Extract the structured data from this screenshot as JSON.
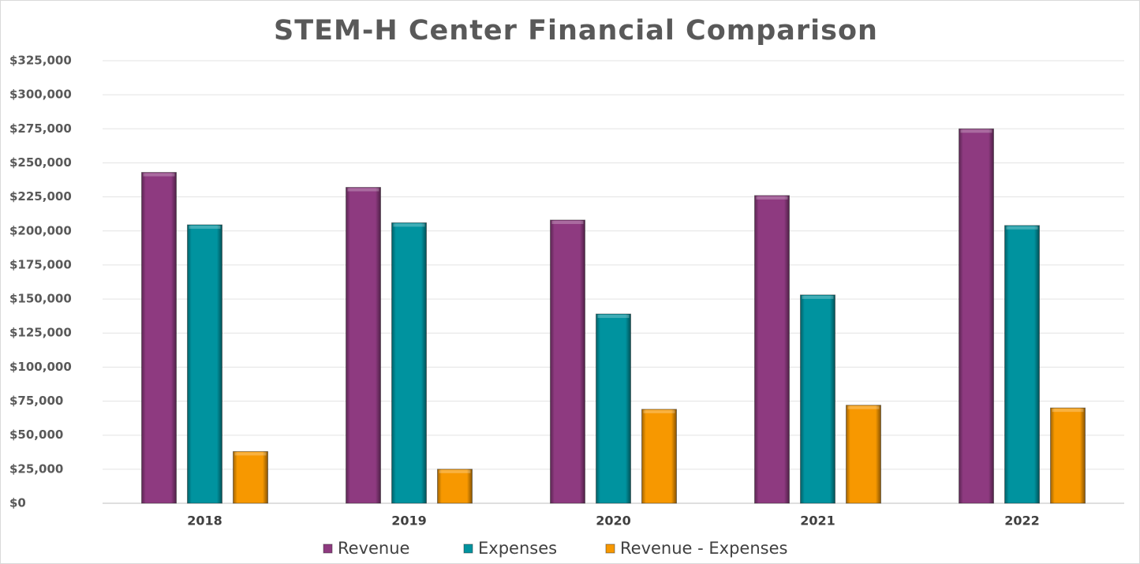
{
  "chart_data": {
    "type": "bar",
    "title": "STEM-H Center Financial Comparison",
    "categories": [
      "2018",
      "2019",
      "2020",
      "2021",
      "2022"
    ],
    "series": [
      {
        "name": "Revenue",
        "color": "#8e3a80",
        "values": [
          243000,
          232000,
          208000,
          226000,
          275000
        ]
      },
      {
        "name": "Expenses",
        "color": "#00939f",
        "values": [
          204500,
          206000,
          139000,
          153000,
          204000
        ]
      },
      {
        "name": "Revenue - Expenses",
        "color": "#f79800",
        "values": [
          38000,
          25000,
          69000,
          72000,
          70000
        ]
      }
    ],
    "ylim": [
      0,
      325000
    ],
    "yticks": [
      {
        "value": 0,
        "label": "$0"
      },
      {
        "value": 25000,
        "label": "$25,000"
      },
      {
        "value": 50000,
        "label": "$50,000"
      },
      {
        "value": 75000,
        "label": "$75,000"
      },
      {
        "value": 100000,
        "label": "$100,000"
      },
      {
        "value": 125000,
        "label": "$125,000"
      },
      {
        "value": 150000,
        "label": "$150,000"
      },
      {
        "value": 175000,
        "label": "$175,000"
      },
      {
        "value": 200000,
        "label": "$200,000"
      },
      {
        "value": 225000,
        "label": "$225,000"
      },
      {
        "value": 250000,
        "label": "$250,000"
      },
      {
        "value": 275000,
        "label": "$275,000"
      },
      {
        "value": 300000,
        "label": "$300,000"
      },
      {
        "value": 325000,
        "label": "$325,000"
      }
    ],
    "grid": true,
    "legend": "bottom"
  }
}
